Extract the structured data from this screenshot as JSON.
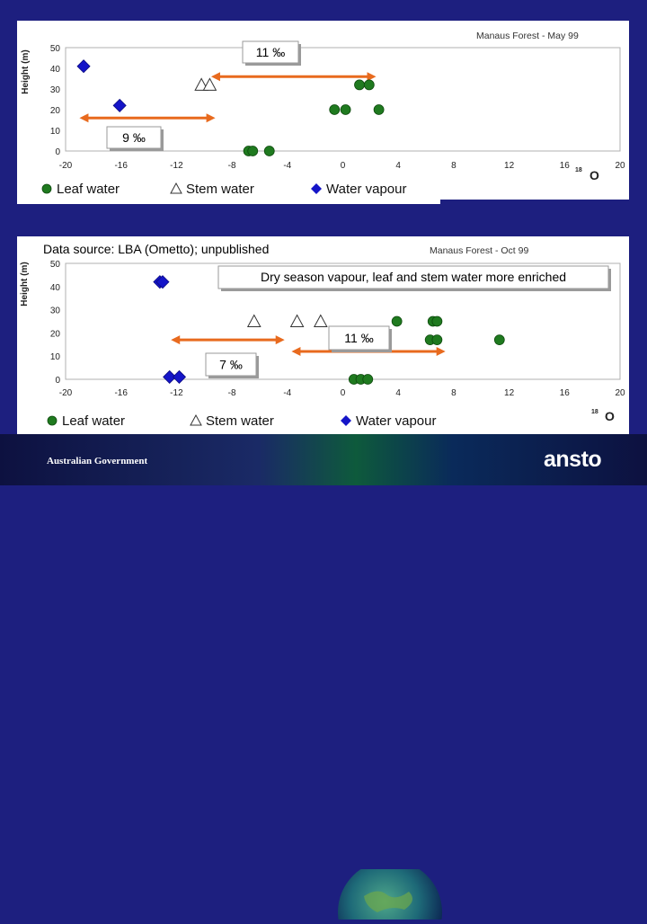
{
  "footer": {
    "government": "Australian Government",
    "logo": "ansto"
  },
  "chart_data": [
    {
      "type": "scatter",
      "title": "Manaus Forest - May 99",
      "ylabel": "Height (m)",
      "xlabel_sup": "18",
      "xlabel": "O",
      "xlim": [
        -20,
        20
      ],
      "ylim": [
        0,
        50
      ],
      "x_ticks": [
        "-20",
        "-16",
        "-12",
        "-8",
        "-4",
        "0",
        "4",
        "8",
        "12",
        "16",
        "20"
      ],
      "y_ticks": [
        "0",
        "10",
        "20",
        "30",
        "40",
        "50"
      ],
      "legend": [
        "Leaf water",
        "Stem water",
        "Water vapour"
      ],
      "series": [
        {
          "name": "Leaf water",
          "marker": "circle",
          "color": "#1f7a1f",
          "points": [
            [
              -6.8,
              0
            ],
            [
              -6.5,
              0
            ],
            [
              -5.3,
              0
            ],
            [
              -0.6,
              20
            ],
            [
              0.2,
              20
            ],
            [
              2.6,
              20
            ],
            [
              1.2,
              32
            ],
            [
              1.9,
              32
            ]
          ]
        },
        {
          "name": "Stem water",
          "marker": "triangle",
          "color": "#ffffff",
          "points": [
            [
              -10.2,
              32
            ],
            [
              -9.6,
              32
            ]
          ]
        },
        {
          "name": "Water vapour",
          "marker": "diamond",
          "color": "#1515c8",
          "points": [
            [
              -18.7,
              41
            ],
            [
              -16.1,
              22
            ]
          ]
        }
      ],
      "annotations": [
        {
          "label": "11 ‰",
          "from": [
            -9.5,
            36
          ],
          "to": [
            2.4,
            36
          ]
        },
        {
          "label": "9 ‰",
          "from": [
            -19,
            16
          ],
          "to": [
            -9.2,
            16
          ]
        }
      ]
    },
    {
      "type": "scatter",
      "title": "Manaus Forest - Oct 99",
      "source_note": "Data source: LBA (Ometto); unpublished",
      "heading": "Dry season vapour,  leaf and stem water more enriched",
      "ylabel": "Height (m)",
      "xlabel_sup": "18",
      "xlabel": "O",
      "xlim": [
        -20,
        20
      ],
      "ylim": [
        0,
        50
      ],
      "x_ticks": [
        "-20",
        "-16",
        "-12",
        "-8",
        "-4",
        "0",
        "4",
        "8",
        "12",
        "16",
        "20"
      ],
      "y_ticks": [
        "0",
        "10",
        "20",
        "30",
        "40",
        "50"
      ],
      "legend": [
        "Leaf water",
        "Stem water",
        "Water vapour"
      ],
      "series": [
        {
          "name": "Leaf water",
          "marker": "circle",
          "color": "#1f7a1f",
          "points": [
            [
              0.8,
              0
            ],
            [
              1.3,
              0
            ],
            [
              1.8,
              0
            ],
            [
              3.9,
              25
            ],
            [
              6.5,
              25
            ],
            [
              6.8,
              25
            ],
            [
              6.3,
              17
            ],
            [
              6.8,
              17
            ],
            [
              11.3,
              17
            ]
          ]
        },
        {
          "name": "Stem water",
          "marker": "triangle",
          "color": "#ffffff",
          "points": [
            [
              -6.4,
              25
            ],
            [
              -3.3,
              25
            ],
            [
              -1.6,
              25
            ]
          ]
        },
        {
          "name": "Water vapour",
          "marker": "diamond",
          "color": "#1515c8",
          "points": [
            [
              -13.2,
              42
            ],
            [
              -13,
              42
            ],
            [
              -12.5,
              1
            ],
            [
              -11.8,
              1
            ]
          ]
        }
      ],
      "annotations": [
        {
          "label": "11 ‰",
          "from": [
            -3.7,
            12
          ],
          "to": [
            7.4,
            12
          ]
        },
        {
          "label": "7 ‰",
          "from": [
            -12.4,
            17
          ],
          "to": [
            -4.2,
            17
          ]
        }
      ]
    }
  ]
}
